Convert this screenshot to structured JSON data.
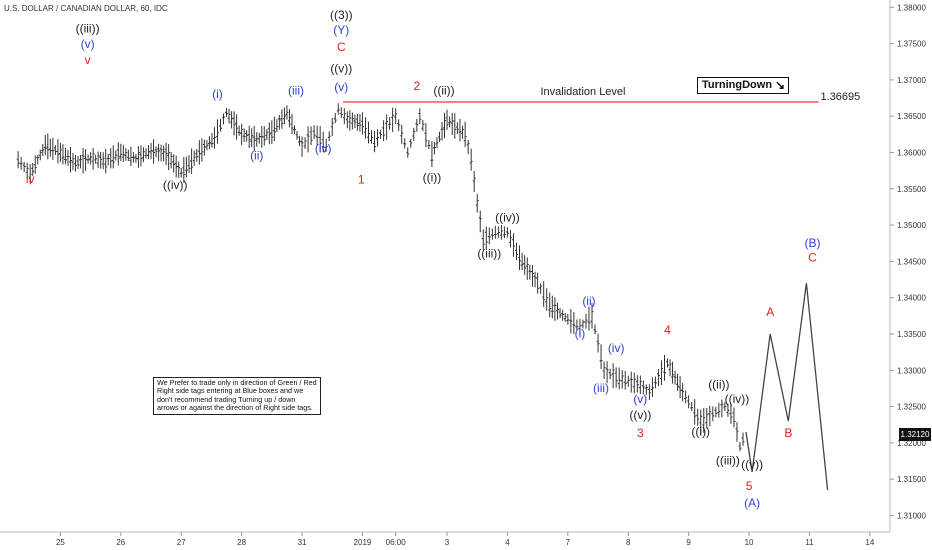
{
  "title": "U.S. DOLLAR / CANADIAN DOLLAR, 60, IDC",
  "note": "We Prefer to trade only in direction of Green / Red Right side tags entering at Blue boxes and we don't recommend trading Turning up / down arrows or against the direction of Right side tags.",
  "brand": "TurningDown",
  "brand_icon": "down-right-arrow-icon",
  "last_price_label": "1.32120",
  "colors": {
    "red": "#e0201e",
    "blue": "#2d3fd6",
    "dark": "#222222",
    "line": "#e43a3a"
  },
  "chart_data": {
    "type": "line",
    "title": "U.S. DOLLAR / CANADIAN DOLLAR, 60, IDC",
    "xlabel": "",
    "ylabel": "",
    "ylim": [
      1.308,
      1.381
    ],
    "grid": false,
    "x_ticks": [
      {
        "label": "25",
        "x": 25
      },
      {
        "label": "26",
        "x": 26
      },
      {
        "label": "27",
        "x": 27
      },
      {
        "label": "28",
        "x": 28
      },
      {
        "label": "31",
        "x": 29
      },
      {
        "label": "2019",
        "x": 30
      },
      {
        "label": "06:00",
        "x": 30.55
      },
      {
        "label": "3",
        "x": 31.4
      },
      {
        "label": "4",
        "x": 32.4
      },
      {
        "label": "7",
        "x": 33.4
      },
      {
        "label": "8",
        "x": 34.4
      },
      {
        "label": "9",
        "x": 35.4
      },
      {
        "label": "10",
        "x": 36.4
      },
      {
        "label": "11",
        "x": 37.4
      },
      {
        "label": "14",
        "x": 38.4
      }
    ],
    "y_ticks": [
      1.31,
      1.315,
      1.32,
      1.325,
      1.33,
      1.335,
      1.34,
      1.345,
      1.35,
      1.355,
      1.36,
      1.365,
      1.37,
      1.375,
      1.38
    ],
    "price_path": [
      [
        24.3,
        1.359
      ],
      [
        24.5,
        1.357
      ],
      [
        24.75,
        1.361
      ],
      [
        25.0,
        1.36
      ],
      [
        25.25,
        1.3585
      ],
      [
        25.5,
        1.3592
      ],
      [
        25.75,
        1.3588
      ],
      [
        26.0,
        1.36
      ],
      [
        26.25,
        1.3592
      ],
      [
        26.5,
        1.3602
      ],
      [
        26.75,
        1.3598
      ],
      [
        27.0,
        1.3572
      ],
      [
        27.3,
        1.36
      ],
      [
        27.55,
        1.362
      ],
      [
        27.75,
        1.3655
      ],
      [
        28.0,
        1.3625
      ],
      [
        28.25,
        1.3618
      ],
      [
        28.5,
        1.3628
      ],
      [
        28.75,
        1.3655
      ],
      [
        29.0,
        1.3608
      ],
      [
        29.2,
        1.3628
      ],
      [
        29.4,
        1.361
      ],
      [
        29.6,
        1.366
      ],
      [
        29.75,
        1.3645
      ],
      [
        30.0,
        1.364
      ],
      [
        30.2,
        1.3615
      ],
      [
        30.4,
        1.3635
      ],
      [
        30.55,
        1.365
      ],
      [
        30.75,
        1.36
      ],
      [
        30.95,
        1.365
      ],
      [
        31.15,
        1.3598
      ],
      [
        31.4,
        1.3645
      ],
      [
        31.7,
        1.3625
      ],
      [
        31.8,
        1.359
      ],
      [
        31.9,
        1.353
      ],
      [
        32.0,
        1.348
      ],
      [
        32.2,
        1.349
      ],
      [
        32.4,
        1.349
      ],
      [
        32.6,
        1.3455
      ],
      [
        32.9,
        1.342
      ],
      [
        33.1,
        1.339
      ],
      [
        33.4,
        1.337
      ],
      [
        33.6,
        1.336
      ],
      [
        33.8,
        1.3375
      ],
      [
        34.0,
        1.33
      ],
      [
        34.2,
        1.329
      ],
      [
        34.4,
        1.3285
      ],
      [
        34.6,
        1.328
      ],
      [
        34.75,
        1.327
      ],
      [
        34.9,
        1.329
      ],
      [
        35.05,
        1.331
      ],
      [
        35.3,
        1.327
      ],
      [
        35.45,
        1.325
      ],
      [
        35.6,
        1.3228
      ],
      [
        35.8,
        1.324
      ],
      [
        36.0,
        1.325
      ],
      [
        36.15,
        1.3235
      ],
      [
        36.25,
        1.3195
      ],
      [
        36.35,
        1.3215
      ]
    ],
    "projection": [
      [
        36.35,
        1.3215
      ],
      [
        36.45,
        1.316
      ],
      [
        36.75,
        1.335
      ],
      [
        37.05,
        1.323
      ],
      [
        37.35,
        1.342
      ],
      [
        37.7,
        1.3135
      ]
    ],
    "invalidation": {
      "label": "Invalidation Level",
      "value": 1.36695,
      "value_label": "1.36695",
      "x_start": 29.68,
      "x_end": 37.55
    },
    "wave_labels": [
      {
        "text": "iv",
        "x": 24.5,
        "y": 1.3558,
        "color": "red"
      },
      {
        "text": "((iii))",
        "x": 25.45,
        "y": 1.3765,
        "color": "dark"
      },
      {
        "text": "(v)",
        "x": 25.45,
        "y": 1.3744,
        "color": "blue"
      },
      {
        "text": "v",
        "x": 25.45,
        "y": 1.3722,
        "color": "red"
      },
      {
        "text": "((iv))",
        "x": 26.9,
        "y": 1.355,
        "color": "dark"
      },
      {
        "text": "(i)",
        "x": 27.6,
        "y": 1.3675,
        "color": "blue"
      },
      {
        "text": "(ii)",
        "x": 28.25,
        "y": 1.359,
        "color": "blue"
      },
      {
        "text": "(iii)",
        "x": 28.9,
        "y": 1.368,
        "color": "blue"
      },
      {
        "text": "(iv)",
        "x": 29.35,
        "y": 1.36,
        "color": "blue"
      },
      {
        "text": "((3))",
        "x": 29.65,
        "y": 1.3784,
        "color": "dark"
      },
      {
        "text": "(Y)",
        "x": 29.65,
        "y": 1.3763,
        "color": "blue"
      },
      {
        "text": "C",
        "x": 29.65,
        "y": 1.374,
        "color": "red"
      },
      {
        "text": "((v))",
        "x": 29.65,
        "y": 1.371,
        "color": "dark"
      },
      {
        "text": "(v)",
        "x": 29.65,
        "y": 1.3685,
        "color": "blue"
      },
      {
        "text": "1",
        "x": 29.98,
        "y": 1.3557,
        "color": "red"
      },
      {
        "text": "2",
        "x": 30.9,
        "y": 1.3686,
        "color": "red"
      },
      {
        "text": "((ii))",
        "x": 31.35,
        "y": 1.368,
        "color": "dark"
      },
      {
        "text": "((i))",
        "x": 31.15,
        "y": 1.356,
        "color": "dark"
      },
      {
        "text": "((iv))",
        "x": 32.4,
        "y": 1.3505,
        "color": "dark"
      },
      {
        "text": "((iii))",
        "x": 32.1,
        "y": 1.3455,
        "color": "dark"
      },
      {
        "text": "(ii)",
        "x": 33.75,
        "y": 1.339,
        "color": "blue"
      },
      {
        "text": "(i)",
        "x": 33.6,
        "y": 1.3345,
        "color": "blue"
      },
      {
        "text": "(iv)",
        "x": 34.2,
        "y": 1.3325,
        "color": "blue"
      },
      {
        "text": "(iii)",
        "x": 33.95,
        "y": 1.327,
        "color": "blue"
      },
      {
        "text": "4",
        "x": 35.05,
        "y": 1.335,
        "color": "red"
      },
      {
        "text": "(v)",
        "x": 34.6,
        "y": 1.3255,
        "color": "blue"
      },
      {
        "text": "((v))",
        "x": 34.6,
        "y": 1.3233,
        "color": "dark"
      },
      {
        "text": "3",
        "x": 34.6,
        "y": 1.3208,
        "color": "red"
      },
      {
        "text": "((ii))",
        "x": 35.9,
        "y": 1.3275,
        "color": "dark"
      },
      {
        "text": "((iv))",
        "x": 36.2,
        "y": 1.3255,
        "color": "dark"
      },
      {
        "text": "((i))",
        "x": 35.6,
        "y": 1.321,
        "color": "dark"
      },
      {
        "text": "((iii))",
        "x": 36.05,
        "y": 1.317,
        "color": "dark"
      },
      {
        "text": "((v))",
        "x": 36.45,
        "y": 1.3165,
        "color": "dark"
      },
      {
        "text": "5",
        "x": 36.4,
        "y": 1.3135,
        "color": "red"
      },
      {
        "text": "(A)",
        "x": 36.45,
        "y": 1.3112,
        "color": "blue"
      },
      {
        "text": "A",
        "x": 36.75,
        "y": 1.3375,
        "color": "red"
      },
      {
        "text": "B",
        "x": 37.05,
        "y": 1.3208,
        "color": "red"
      },
      {
        "text": "(B)",
        "x": 37.45,
        "y": 1.347,
        "color": "blue"
      },
      {
        "text": "C",
        "x": 37.45,
        "y": 1.345,
        "color": "red"
      }
    ]
  }
}
